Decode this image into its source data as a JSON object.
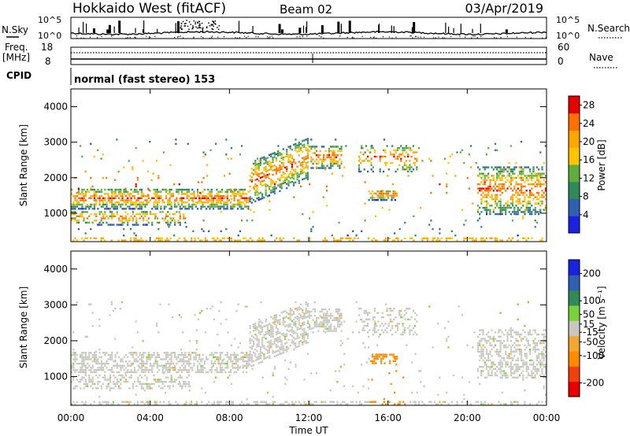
{
  "header": {
    "title": "Hokkaido West (fitACF)",
    "beam": "Beam 02",
    "date": "03/Apr/2019"
  },
  "status": {
    "nsky_label": "N.Sky",
    "nsky_ticks": [
      "10^5",
      "10^0"
    ],
    "nsearch_label": "N.Search",
    "nsearch_ticks": [
      "10^5",
      "10^0"
    ],
    "freq_label": [
      "Freq.",
      "[MHz]"
    ],
    "freq_ticks": [
      "18",
      "8"
    ],
    "nave_label": "Nave",
    "nave_ticks": [
      "60",
      "0"
    ],
    "cpid_label": "CPID",
    "cpid_text": "normal (fast stereo) 153"
  },
  "colors": {
    "power": [
      "#1a22e0",
      "#2f5fb0",
      "#2e8a5a",
      "#5fae3c",
      "#ffc400",
      "#ffa600",
      "#ff7000",
      "#e80000"
    ],
    "velocity": [
      "#1a22e0",
      "#2f5fb0",
      "#2f8a55",
      "#7ad13a",
      "#c8c8c0",
      "#f0a830",
      "#ff8a00",
      "#f04010",
      "#e80000"
    ]
  },
  "chart_data": [
    {
      "type": "heatmap",
      "name": "power",
      "ylabel": "Slant Range [km]",
      "yticks": [
        "4000",
        "3000",
        "2000",
        "1000"
      ],
      "ylim": [
        200,
        4500
      ],
      "xlim": [
        0,
        24
      ],
      "colorbar_label": "Power [dB]",
      "colorbar_ticks": [
        "28",
        "24",
        "20",
        "16",
        "12",
        "8",
        "4"
      ],
      "colorbar_range": [
        0,
        30
      ],
      "bands": [
        {
          "t": [
            0,
            9
          ],
          "range": [
            1200,
            1700
          ],
          "value": 12
        },
        {
          "t": [
            9,
            13.5
          ],
          "range": [
            1700,
            2800
          ],
          "value": 16
        },
        {
          "t": [
            15,
            16.5
          ],
          "range": [
            1400,
            1700
          ],
          "value": 10
        },
        {
          "t": [
            21,
            24
          ],
          "range": [
            1100,
            2300
          ],
          "value": 12
        }
      ]
    },
    {
      "type": "heatmap",
      "name": "velocity",
      "xlabel": "Time UT",
      "xticks": [
        "00:00",
        "04:00",
        "08:00",
        "12:00",
        "16:00",
        "20:00",
        "00:00"
      ],
      "ylabel": "Slant Range [km]",
      "yticks": [
        "4000",
        "3000",
        "2000",
        "1000"
      ],
      "ylim": [
        200,
        4500
      ],
      "xlim": [
        0,
        24
      ],
      "colorbar_label": "Velocity [m s⁻¹]",
      "colorbar_ticks": [
        "200",
        "100",
        "50",
        "15",
        "-15",
        "-50",
        "-100",
        "-200"
      ],
      "colorbar_range": [
        -250,
        250
      ]
    }
  ]
}
